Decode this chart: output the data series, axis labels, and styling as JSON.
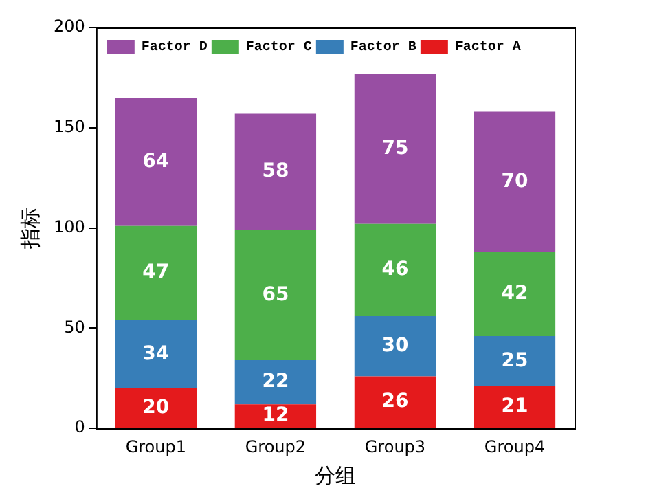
{
  "chart_data": {
    "type": "bar",
    "stacked": true,
    "xlabel": "分组",
    "ylabel": "指标",
    "categories": [
      "Group1",
      "Group2",
      "Group3",
      "Group4"
    ],
    "series": [
      {
        "name": "Factor A",
        "color": "#e41a1c",
        "values": [
          20,
          12,
          26,
          21
        ]
      },
      {
        "name": "Factor B",
        "color": "#377eb8",
        "values": [
          34,
          22,
          30,
          25
        ]
      },
      {
        "name": "Factor C",
        "color": "#4daf4a",
        "values": [
          47,
          65,
          46,
          42
        ]
      },
      {
        "name": "Factor D",
        "color": "#984ea3",
        "values": [
          64,
          58,
          75,
          70
        ]
      }
    ],
    "ylim": [
      0,
      200
    ],
    "yticks": [
      0,
      50,
      100,
      150,
      200
    ],
    "grid": false,
    "legend": "top left",
    "data_labels": true
  }
}
